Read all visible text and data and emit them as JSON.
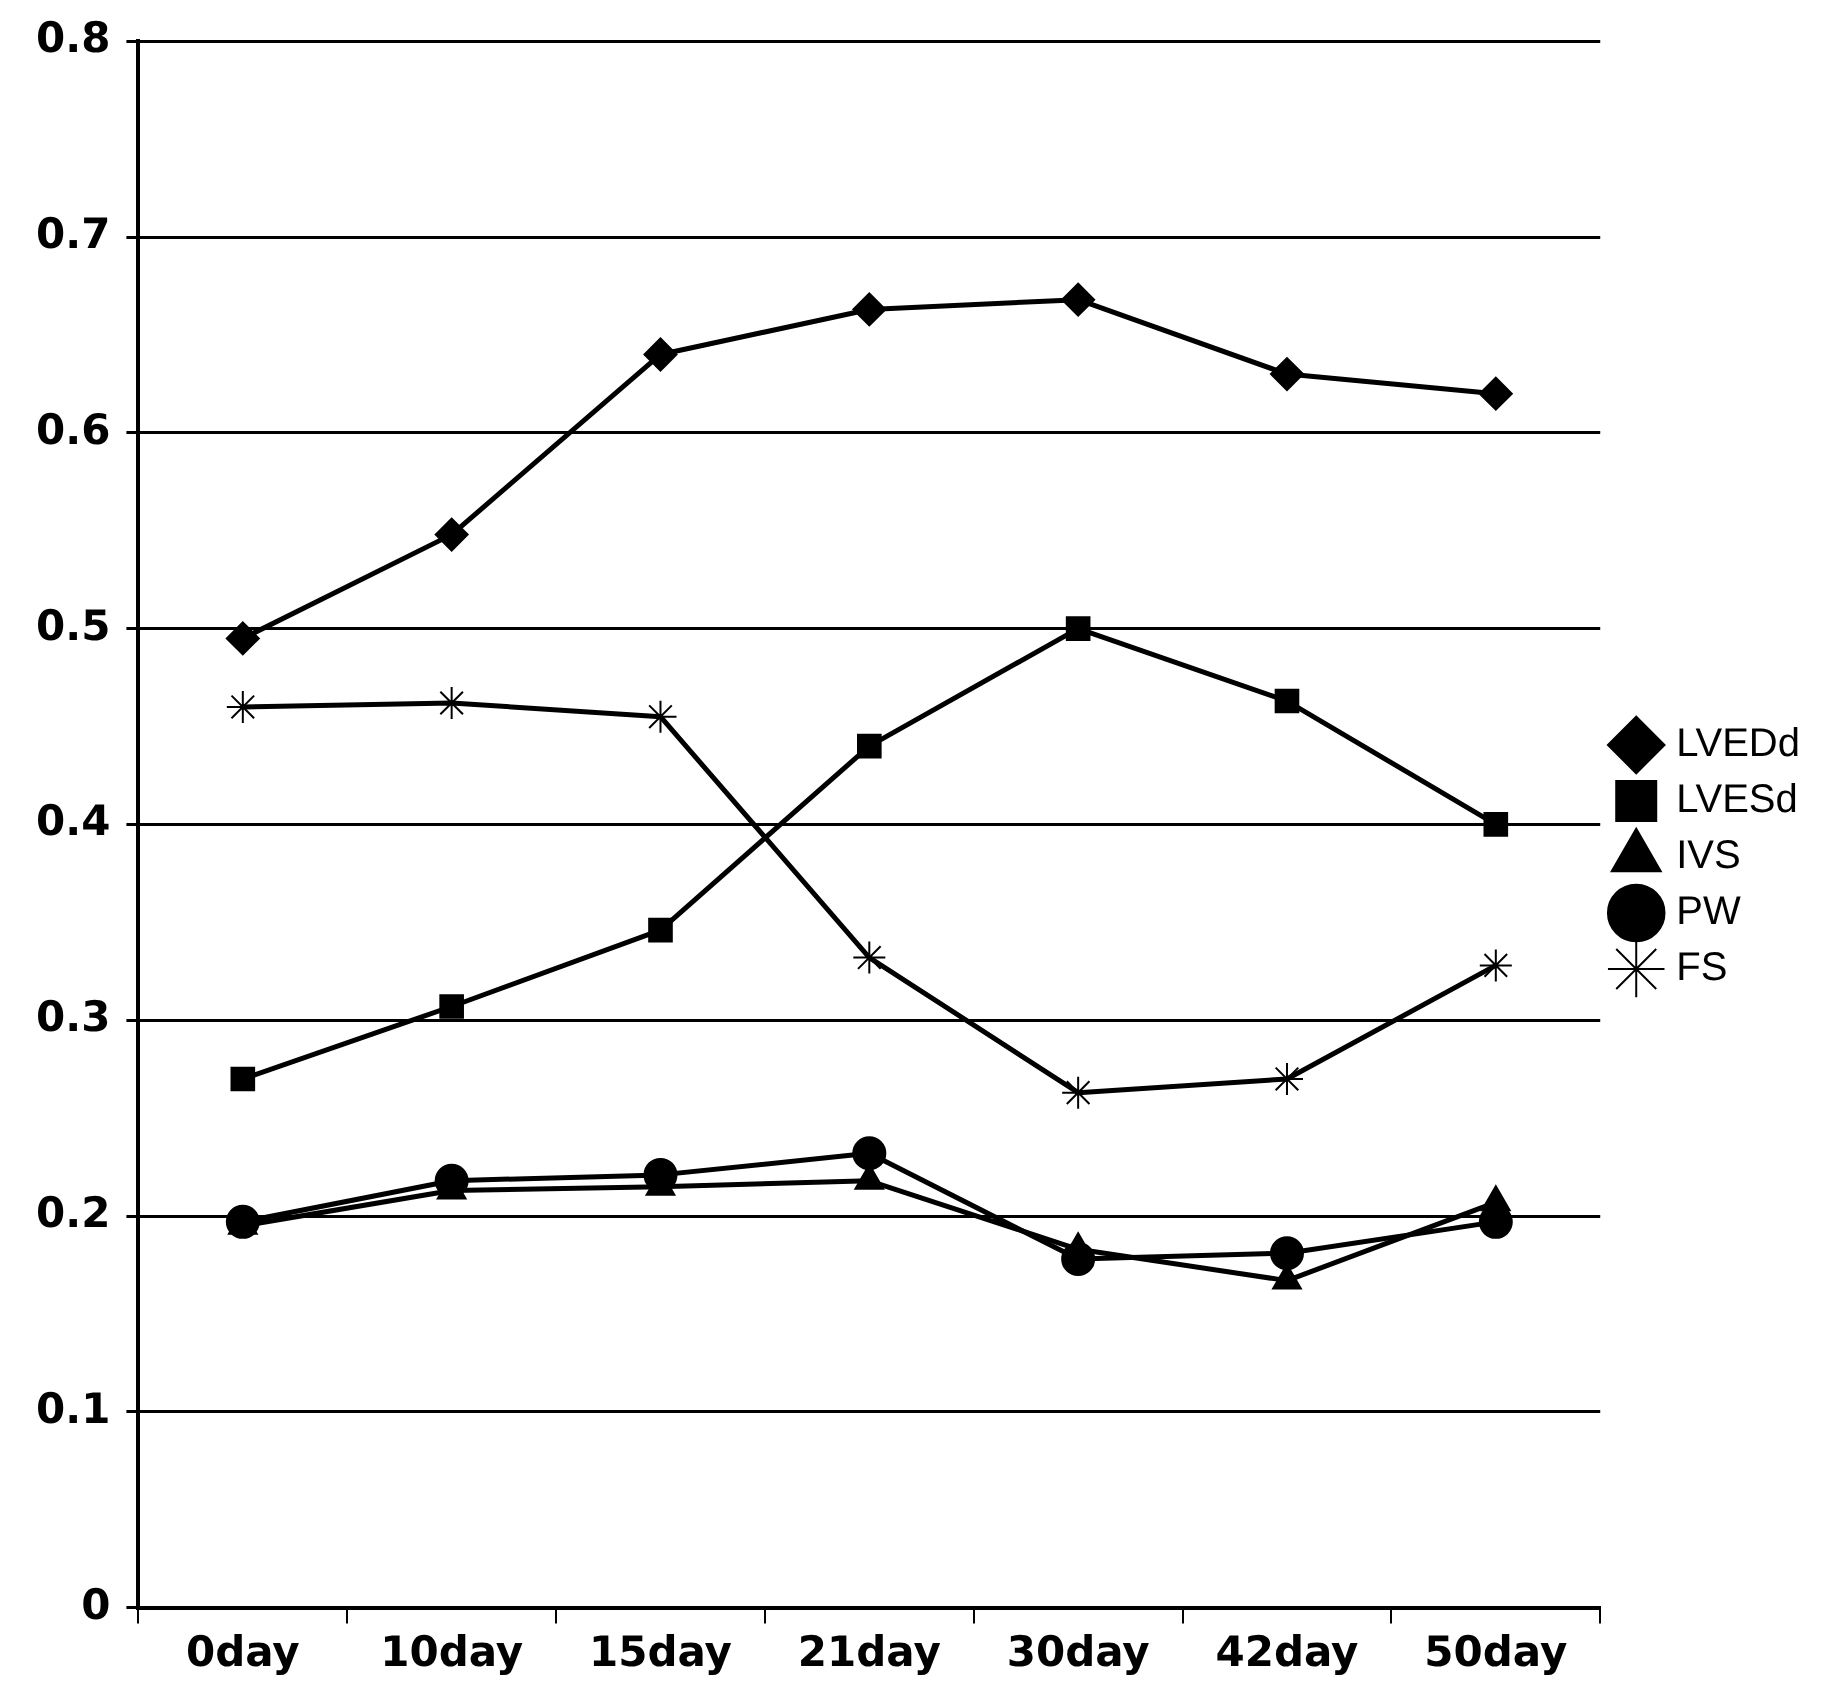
{
  "chart_data": {
    "type": "line",
    "categories": [
      "0day",
      "10day",
      "15day",
      "21day",
      "30day",
      "42day",
      "50day"
    ],
    "series": [
      {
        "name": "LVEDd",
        "color": "#000000",
        "marker": "diamond",
        "values": [
          0.495,
          0.548,
          0.64,
          0.663,
          0.668,
          0.63,
          0.62
        ]
      },
      {
        "name": "LVESd",
        "color": "#000000",
        "marker": "square",
        "values": [
          0.27,
          0.307,
          0.346,
          0.44,
          0.5,
          0.463,
          0.4
        ]
      },
      {
        "name": "IVS",
        "color": "#000000",
        "marker": "triangle",
        "values": [
          0.195,
          0.213,
          0.215,
          0.218,
          0.183,
          0.167,
          0.207
        ]
      },
      {
        "name": "PW",
        "color": "#000000",
        "marker": "circle",
        "values": [
          0.197,
          0.218,
          0.221,
          0.232,
          0.178,
          0.181,
          0.197
        ]
      },
      {
        "name": "FS",
        "color": "#000000",
        "marker": "cross",
        "values": [
          0.46,
          0.462,
          0.455,
          0.332,
          0.263,
          0.27,
          0.328
        ]
      }
    ],
    "ylim": [
      0,
      0.8
    ],
    "yticks": [
      {
        "value": 0,
        "label": "0"
      },
      0.1,
      0.2,
      0.3,
      0.4,
      0.5,
      0.6,
      0.7,
      0.8
    ],
    "grid": "y",
    "legend": "right",
    "line_style": "solid"
  }
}
